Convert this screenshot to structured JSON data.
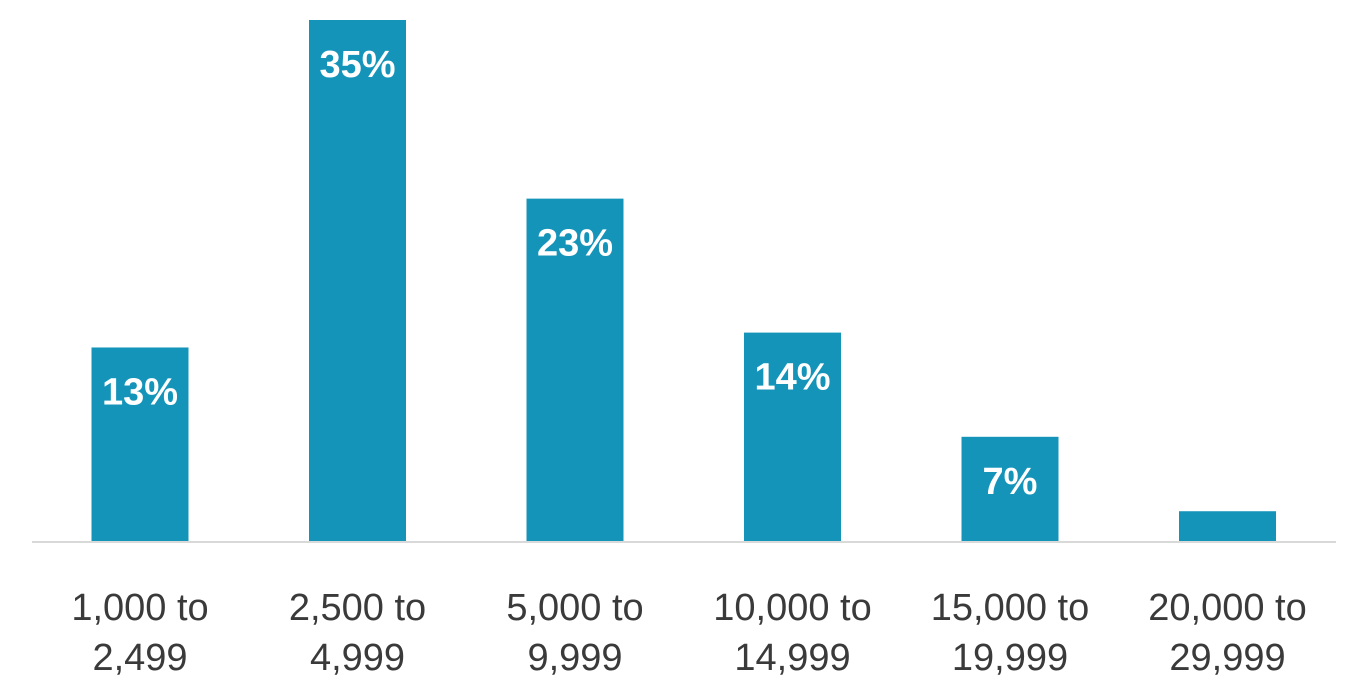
{
  "chart_data": {
    "type": "bar",
    "title": "",
    "xlabel": "",
    "ylabel": "",
    "categories": [
      [
        "1,000 to",
        "2,499"
      ],
      [
        "2,500 to",
        "4,999"
      ],
      [
        "5,000 to",
        "9,999"
      ],
      [
        "10,000 to",
        "14,999"
      ],
      [
        "15,000 to",
        "19,999"
      ],
      [
        "20,000 to",
        "29,999"
      ]
    ],
    "values": [
      13,
      35,
      23,
      14,
      7,
      2
    ],
    "data_labels": [
      "13%",
      "35%",
      "23%",
      "14%",
      "7%",
      ""
    ],
    "ylim": [
      0,
      35
    ],
    "grid": false,
    "legend": "none",
    "colors": {
      "bar": "#1594b9",
      "axis": "#d9d9d9",
      "data_label": "#ffffff",
      "category_label": "#3a3a3a"
    }
  }
}
